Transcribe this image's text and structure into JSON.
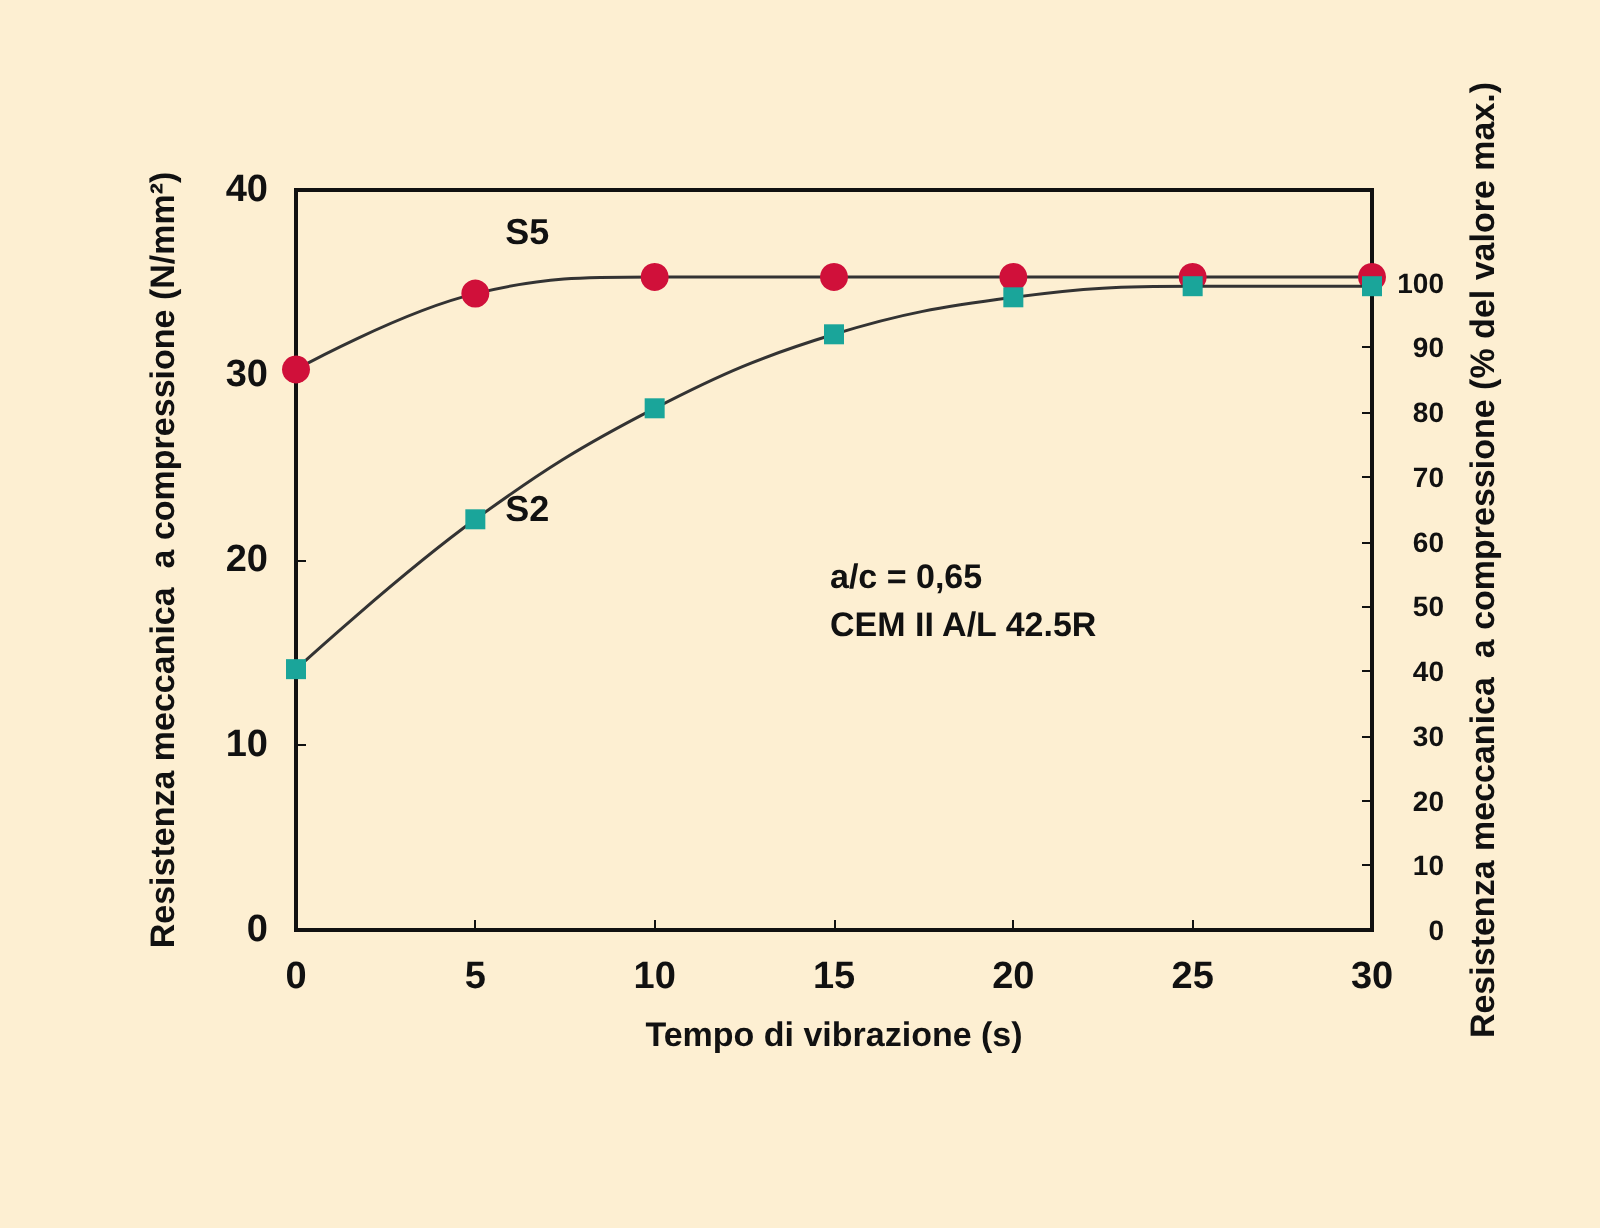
{
  "chart_data": {
    "type": "line",
    "xlabel": "Tempo di vibrazione (s)",
    "ylabel": "Resistenza meccanica  a compressione (N/mm²)",
    "y2label": "Resistenza meccanica  a compressione (% del valore max.)",
    "x": [
      0,
      5,
      10,
      15,
      20,
      25,
      30
    ],
    "series": [
      {
        "name": "S5",
        "color": "#d0103a",
        "marker": "circle",
        "values": [
          30.3,
          34.4,
          35.3,
          35.3,
          35.3,
          35.3,
          35.3
        ]
      },
      {
        "name": "S2",
        "color": "#1aa59a",
        "marker": "square",
        "values": [
          14.1,
          22.2,
          28.2,
          32.2,
          34.2,
          34.8,
          34.8
        ]
      }
    ],
    "xlim": [
      0,
      30
    ],
    "xticks": [
      0,
      5,
      10,
      15,
      20,
      25,
      30
    ],
    "ylim": [
      0,
      40
    ],
    "yticks": [
      0,
      10,
      20,
      30,
      40
    ],
    "y2lim": [
      0,
      114.3
    ],
    "y2ticks": [
      0,
      10,
      20,
      30,
      40,
      50,
      60,
      70,
      80,
      90,
      100
    ],
    "annotations": [
      "a/c = 0,65",
      "CEM II A/L 42.5R"
    ],
    "grid": false
  }
}
